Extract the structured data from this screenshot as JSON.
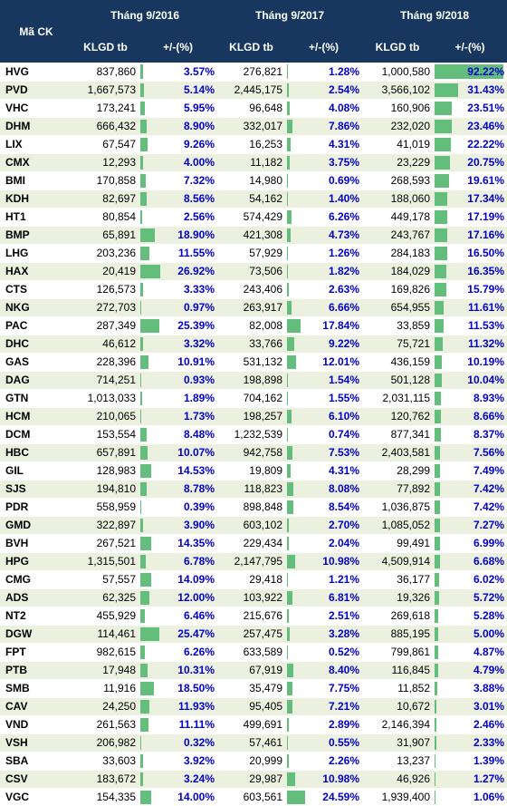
{
  "table": {
    "header": {
      "code": "Mã CK",
      "periods": [
        "Tháng 9/2016",
        "Tháng 9/2017",
        "Tháng 9/2018"
      ],
      "volume": "KLGD tb",
      "change": "+/-(%)"
    },
    "rows": [
      [
        "HVG",
        "837,860",
        {
          "value": 3.57,
          "label": "3.57%"
        },
        "276,821",
        {
          "value": 1.28,
          "label": "1.28%"
        },
        "1,000,580",
        {
          "value": 92.22,
          "label": "92.22%"
        }
      ],
      [
        "PVD",
        "1,667,573",
        {
          "value": 5.14,
          "label": "5.14%"
        },
        "2,445,175",
        {
          "value": 2.54,
          "label": "2.54%"
        },
        "3,566,102",
        {
          "value": 31.43,
          "label": "31.43%"
        }
      ],
      [
        "VHC",
        "173,241",
        {
          "value": 5.95,
          "label": "5.95%"
        },
        "96,648",
        {
          "value": 4.08,
          "label": "4.08%"
        },
        "160,906",
        {
          "value": 23.51,
          "label": "23.51%"
        }
      ],
      [
        "DHM",
        "666,432",
        {
          "value": 8.9,
          "label": "8.90%"
        },
        "332,017",
        {
          "value": 7.86,
          "label": "7.86%"
        },
        "232,020",
        {
          "value": 23.46,
          "label": "23.46%"
        }
      ],
      [
        "LIX",
        "67,547",
        {
          "value": 9.26,
          "label": "9.26%"
        },
        "16,253",
        {
          "value": 4.31,
          "label": "4.31%"
        },
        "41,019",
        {
          "value": 22.22,
          "label": "22.22%"
        }
      ],
      [
        "CMX",
        "12,293",
        {
          "value": 4.0,
          "label": "4.00%"
        },
        "11,182",
        {
          "value": 3.75,
          "label": "3.75%"
        },
        "23,229",
        {
          "value": 20.75,
          "label": "20.75%"
        }
      ],
      [
        "BMI",
        "170,858",
        {
          "value": 7.32,
          "label": "7.32%"
        },
        "14,980",
        {
          "value": 0.69,
          "label": "0.69%"
        },
        "268,593",
        {
          "value": 19.61,
          "label": "19.61%"
        }
      ],
      [
        "KDH",
        "82,697",
        {
          "value": 8.56,
          "label": "8.56%"
        },
        "54,162",
        {
          "value": 1.4,
          "label": "1.40%"
        },
        "188,060",
        {
          "value": 17.34,
          "label": "17.34%"
        }
      ],
      [
        "HT1",
        "80,854",
        {
          "value": 2.56,
          "label": "2.56%"
        },
        "574,429",
        {
          "value": 6.26,
          "label": "6.26%"
        },
        "449,178",
        {
          "value": 17.19,
          "label": "17.19%"
        }
      ],
      [
        "BMP",
        "65,891",
        {
          "value": 18.9,
          "label": "18.90%"
        },
        "421,308",
        {
          "value": 4.73,
          "label": "4.73%"
        },
        "243,767",
        {
          "value": 17.16,
          "label": "17.16%"
        }
      ],
      [
        "LHG",
        "203,236",
        {
          "value": 11.55,
          "label": "11.55%"
        },
        "57,929",
        {
          "value": 1.26,
          "label": "1.26%"
        },
        "284,183",
        {
          "value": 16.5,
          "label": "16.50%"
        }
      ],
      [
        "HAX",
        "20,419",
        {
          "value": 26.92,
          "label": "26.92%"
        },
        "73,506",
        {
          "value": 1.82,
          "label": "1.82%"
        },
        "184,029",
        {
          "value": 16.35,
          "label": "16.35%"
        }
      ],
      [
        "CTS",
        "126,573",
        {
          "value": 3.33,
          "label": "3.33%"
        },
        "243,406",
        {
          "value": 2.63,
          "label": "2.63%"
        },
        "169,826",
        {
          "value": 15.79,
          "label": "15.79%"
        }
      ],
      [
        "NKG",
        "272,703",
        {
          "value": 0.97,
          "label": "0.97%"
        },
        "263,917",
        {
          "value": 6.66,
          "label": "6.66%"
        },
        "654,955",
        {
          "value": 11.61,
          "label": "11.61%"
        }
      ],
      [
        "PAC",
        "287,349",
        {
          "value": 25.39,
          "label": "25.39%"
        },
        "82,008",
        {
          "value": 17.84,
          "label": "17.84%"
        },
        "33,859",
        {
          "value": 11.53,
          "label": "11.53%"
        }
      ],
      [
        "DHC",
        "46,612",
        {
          "value": 3.32,
          "label": "3.32%"
        },
        "33,766",
        {
          "value": 9.22,
          "label": "9.22%"
        },
        "75,721",
        {
          "value": 11.32,
          "label": "11.32%"
        }
      ],
      [
        "GAS",
        "228,396",
        {
          "value": 10.91,
          "label": "10.91%"
        },
        "531,132",
        {
          "value": 12.01,
          "label": "12.01%"
        },
        "436,159",
        {
          "value": 10.19,
          "label": "10.19%"
        }
      ],
      [
        "DAG",
        "714,251",
        {
          "value": 0.93,
          "label": "0.93%"
        },
        "198,898",
        {
          "value": 1.54,
          "label": "1.54%"
        },
        "501,128",
        {
          "value": 10.04,
          "label": "10.04%"
        }
      ],
      [
        "GTN",
        "1,013,033",
        {
          "value": 1.89,
          "label": "1.89%"
        },
        "704,162",
        {
          "value": 1.55,
          "label": "1.55%"
        },
        "2,031,115",
        {
          "value": 8.93,
          "label": "8.93%"
        }
      ],
      [
        "HCM",
        "210,065",
        {
          "value": 1.73,
          "label": "1.73%"
        },
        "198,257",
        {
          "value": 6.1,
          "label": "6.10%"
        },
        "120,762",
        {
          "value": 8.66,
          "label": "8.66%"
        }
      ],
      [
        "DCM",
        "153,554",
        {
          "value": 8.48,
          "label": "8.48%"
        },
        "1,232,539",
        {
          "value": 0.74,
          "label": "0.74%"
        },
        "877,341",
        {
          "value": 8.37,
          "label": "8.37%"
        }
      ],
      [
        "HBC",
        "657,891",
        {
          "value": 10.07,
          "label": "10.07%"
        },
        "942,758",
        {
          "value": 7.53,
          "label": "7.53%"
        },
        "2,403,581",
        {
          "value": 7.56,
          "label": "7.56%"
        }
      ],
      [
        "GIL",
        "128,983",
        {
          "value": 14.53,
          "label": "14.53%"
        },
        "19,809",
        {
          "value": 4.31,
          "label": "4.31%"
        },
        "28,299",
        {
          "value": 7.49,
          "label": "7.49%"
        }
      ],
      [
        "SJS",
        "194,810",
        {
          "value": 8.78,
          "label": "8.78%"
        },
        "118,823",
        {
          "value": 8.08,
          "label": "8.08%"
        },
        "77,892",
        {
          "value": 7.42,
          "label": "7.42%"
        }
      ],
      [
        "PDR",
        "558,959",
        {
          "value": 0.39,
          "label": "0.39%"
        },
        "898,848",
        {
          "value": 8.54,
          "label": "8.54%"
        },
        "1,036,875",
        {
          "value": 7.42,
          "label": "7.42%"
        }
      ],
      [
        "GMD",
        "322,897",
        {
          "value": 3.9,
          "label": "3.90%"
        },
        "603,102",
        {
          "value": 2.7,
          "label": "2.70%"
        },
        "1,085,052",
        {
          "value": 7.27,
          "label": "7.27%"
        }
      ],
      [
        "BVH",
        "267,521",
        {
          "value": 14.35,
          "label": "14.35%"
        },
        "229,434",
        {
          "value": 2.04,
          "label": "2.04%"
        },
        "99,491",
        {
          "value": 6.99,
          "label": "6.99%"
        }
      ],
      [
        "HPG",
        "1,315,501",
        {
          "value": 6.78,
          "label": "6.78%"
        },
        "2,147,795",
        {
          "value": 10.98,
          "label": "10.98%"
        },
        "4,509,914",
        {
          "value": 6.68,
          "label": "6.68%"
        }
      ],
      [
        "CMG",
        "57,557",
        {
          "value": 14.09,
          "label": "14.09%"
        },
        "29,418",
        {
          "value": 1.21,
          "label": "1.21%"
        },
        "36,177",
        {
          "value": 6.02,
          "label": "6.02%"
        }
      ],
      [
        "ADS",
        "62,325",
        {
          "value": 12.0,
          "label": "12.00%"
        },
        "103,922",
        {
          "value": 6.81,
          "label": "6.81%"
        },
        "19,326",
        {
          "value": 5.72,
          "label": "5.72%"
        }
      ],
      [
        "NT2",
        "455,929",
        {
          "value": 6.46,
          "label": "6.46%"
        },
        "215,676",
        {
          "value": 2.51,
          "label": "2.51%"
        },
        "269,618",
        {
          "value": 5.28,
          "label": "5.28%"
        }
      ],
      [
        "DGW",
        "114,461",
        {
          "value": 25.47,
          "label": "25.47%"
        },
        "257,475",
        {
          "value": 3.28,
          "label": "3.28%"
        },
        "885,195",
        {
          "value": 5.0,
          "label": "5.00%"
        }
      ],
      [
        "FPT",
        "982,615",
        {
          "value": 6.26,
          "label": "6.26%"
        },
        "633,589",
        {
          "value": 0.52,
          "label": "0.52%"
        },
        "799,861",
        {
          "value": 4.87,
          "label": "4.87%"
        }
      ],
      [
        "PTB",
        "17,948",
        {
          "value": 10.31,
          "label": "10.31%"
        },
        "67,919",
        {
          "value": 8.4,
          "label": "8.40%"
        },
        "116,845",
        {
          "value": 4.79,
          "label": "4.79%"
        }
      ],
      [
        "SMB",
        "11,916",
        {
          "value": 18.5,
          "label": "18.50%"
        },
        "35,479",
        {
          "value": 7.75,
          "label": "7.75%"
        },
        "11,852",
        {
          "value": 3.88,
          "label": "3.88%"
        }
      ],
      [
        "CAV",
        "24,250",
        {
          "value": 11.93,
          "label": "11.93%"
        },
        "95,405",
        {
          "value": 7.21,
          "label": "7.21%"
        },
        "10,672",
        {
          "value": 3.01,
          "label": "3.01%"
        }
      ],
      [
        "VND",
        "261,563",
        {
          "value": 11.11,
          "label": "11.11%"
        },
        "499,691",
        {
          "value": 2.89,
          "label": "2.89%"
        },
        "2,146,394",
        {
          "value": 2.46,
          "label": "2.46%"
        }
      ],
      [
        "VSH",
        "206,982",
        {
          "value": 0.32,
          "label": "0.32%"
        },
        "57,461",
        {
          "value": 0.55,
          "label": "0.55%"
        },
        "31,907",
        {
          "value": 2.33,
          "label": "2.33%"
        }
      ],
      [
        "SBA",
        "33,603",
        {
          "value": 3.92,
          "label": "3.92%"
        },
        "20,999",
        {
          "value": 2.26,
          "label": "2.26%"
        },
        "13,237",
        {
          "value": 1.39,
          "label": "1.39%"
        }
      ],
      [
        "CSV",
        "183,672",
        {
          "value": 3.24,
          "label": "3.24%"
        },
        "29,987",
        {
          "value": 10.98,
          "label": "10.98%"
        },
        "46,926",
        {
          "value": 1.27,
          "label": "1.27%"
        }
      ],
      [
        "VGC",
        "154,335",
        {
          "value": 14.0,
          "label": "14.00%"
        },
        "603,561",
        {
          "value": 24.59,
          "label": "24.59%"
        },
        "1,939,400",
        {
          "value": 1.06,
          "label": "1.06%"
        }
      ]
    ]
  }
}
